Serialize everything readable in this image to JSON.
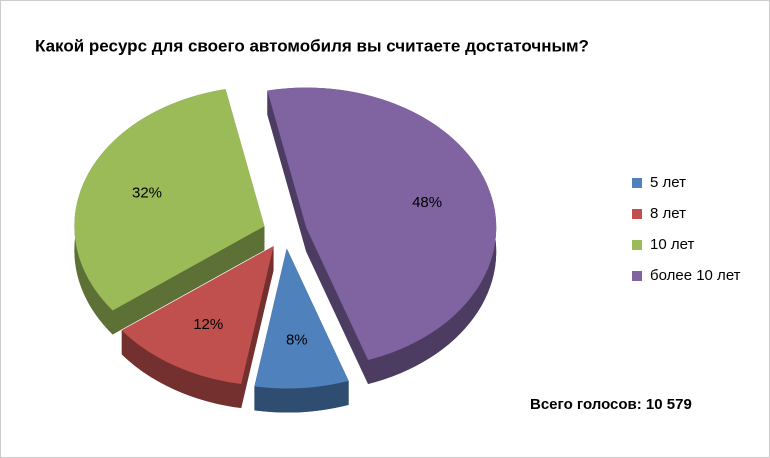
{
  "chart_data": {
    "type": "pie",
    "title": "Какой ресурс для своего автомобиля вы считаете достаточным?",
    "categories": [
      "5 лет",
      "8 лет",
      "10 лет",
      "более 10 лет"
    ],
    "values": [
      8,
      12,
      32,
      48
    ],
    "value_labels": [
      "8%",
      "12%",
      "32%",
      "48%"
    ],
    "colors": [
      "#4f81bd",
      "#c0504d",
      "#9bbb59",
      "#8064a2"
    ],
    "legend": "right",
    "annotation": "Всего голосов: 10 579"
  }
}
